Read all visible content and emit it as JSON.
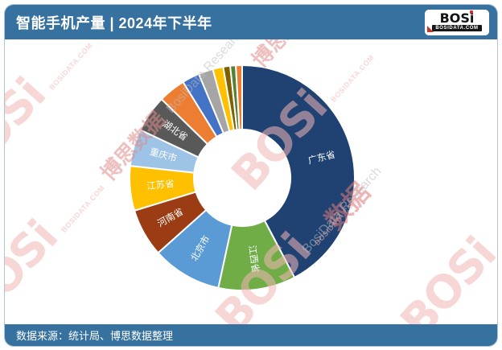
{
  "header": {
    "title": "智能手机产量 | 2024年下半年",
    "logo": {
      "brand": "BOS",
      "i": "i",
      "domain": "BOSIDATA.COM"
    }
  },
  "footer": {
    "source": "数据来源：统计局、博思数据整理"
  },
  "watermark": {
    "brand": "BOSi",
    "domain": "BOSIDATA.COM",
    "cn": "博思数据",
    "en": "BosiData Research",
    "extra": "数据"
  },
  "colors": {
    "bar_blue": "#36719F",
    "card_border": "#AEC6D8",
    "slice_gap": "#FFFFFF"
  },
  "chart_data": {
    "type": "pie",
    "subtype": "donut",
    "title": "智能手机产量 | 2024年下半年",
    "legend": "none",
    "label_style": "white radial labels inside slices, large slices only",
    "inner_radius_ratio": 0.43,
    "start_angle_deg": 0,
    "direction": "clockwise",
    "segments": [
      {
        "label": "广东省",
        "value": 42.3,
        "color": "#1F4272"
      },
      {
        "label": "江西省",
        "value": 11.1,
        "color": "#70AD47"
      },
      {
        "label": "北京市",
        "value": 10.0,
        "color": "#5B9BD5"
      },
      {
        "label": "河南省",
        "value": 6.9,
        "color": "#9B3C14"
      },
      {
        "label": "江苏省",
        "value": 6.4,
        "color": "#FFC000"
      },
      {
        "label": "重庆市",
        "value": 5.3,
        "color": "#9DC3E6"
      },
      {
        "label": "湖北省",
        "value": 5.3,
        "color": "#595959"
      },
      {
        "label": "",
        "value": 3.9,
        "color": "#ED7D31"
      },
      {
        "label": "",
        "value": 2.5,
        "color": "#4472C4"
      },
      {
        "label": "",
        "value": 2.1,
        "color": "#A5A5A5"
      },
      {
        "label": "",
        "value": 1.5,
        "color": "#FFC000"
      },
      {
        "label": "",
        "value": 1.0,
        "color": "#806000"
      },
      {
        "label": "",
        "value": 0.8,
        "color": "#538135"
      },
      {
        "label": "",
        "value": 0.9,
        "color": "#ED7D31"
      }
    ]
  }
}
